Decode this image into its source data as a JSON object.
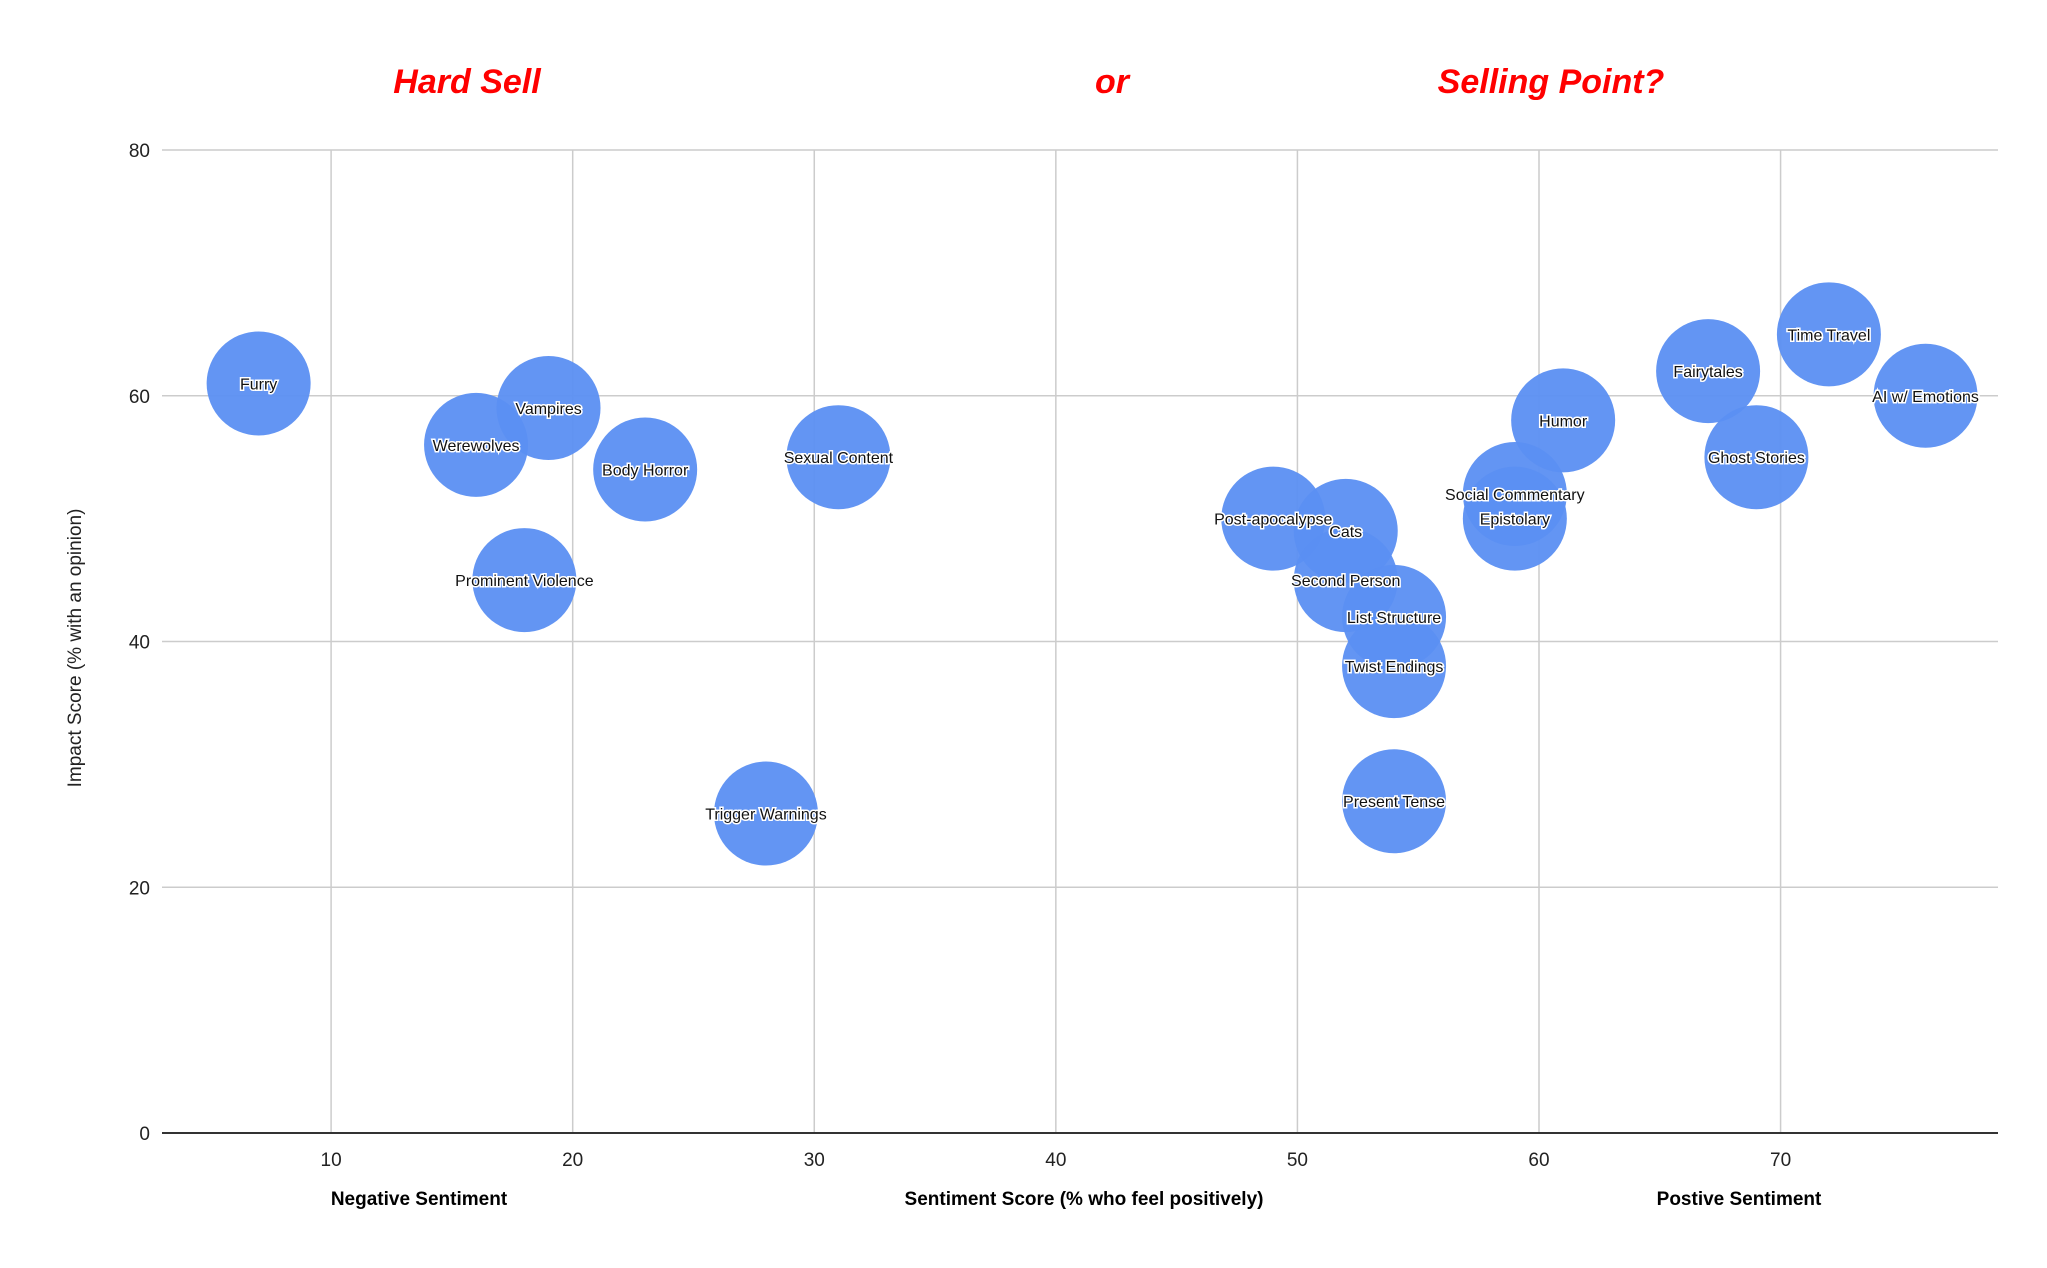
{
  "headlines": {
    "left": "Hard Sell",
    "middle": "or",
    "right": "Selling Point?"
  },
  "colors": {
    "bubble": "#5b8ff2",
    "headline": "#ff0000",
    "grid": "#cccccc",
    "axis": "#333333"
  },
  "chart_data": {
    "type": "scatter",
    "variant": "bubble",
    "xlabel": "Sentiment Score (% who feel positively)",
    "xlabel_left": "Negative Sentiment",
    "xlabel_right": "Postive Sentiment",
    "ylabel": "Impact Score (% with an opinion)",
    "xlim": [
      3,
      79
    ],
    "ylim": [
      0,
      80
    ],
    "x_ticks": [
      10,
      20,
      30,
      40,
      50,
      60,
      70
    ],
    "y_ticks": [
      0,
      20,
      40,
      60,
      80
    ],
    "grid": true,
    "legend": "none",
    "points": [
      {
        "label": "Furry",
        "x": 7,
        "y": 61
      },
      {
        "label": "Werewolves",
        "x": 16,
        "y": 56
      },
      {
        "label": "Vampires",
        "x": 19,
        "y": 59
      },
      {
        "label": "Body Horror",
        "x": 23,
        "y": 54
      },
      {
        "label": "Prominent Violence",
        "x": 18,
        "y": 45
      },
      {
        "label": "Sexual Content",
        "x": 31,
        "y": 55
      },
      {
        "label": "Trigger Warnings",
        "x": 28,
        "y": 26
      },
      {
        "label": "Post-apocalypse",
        "x": 49,
        "y": 50
      },
      {
        "label": "Cats",
        "x": 52,
        "y": 49
      },
      {
        "label": "Second Person",
        "x": 52,
        "y": 45
      },
      {
        "label": "List Structure",
        "x": 54,
        "y": 42
      },
      {
        "label": "Twist Endings",
        "x": 54,
        "y": 38
      },
      {
        "label": "Present Tense",
        "x": 54,
        "y": 27
      },
      {
        "label": "Social Commentary",
        "x": 59,
        "y": 52
      },
      {
        "label": "Epistolary",
        "x": 59,
        "y": 50
      },
      {
        "label": "Humor",
        "x": 61,
        "y": 58
      },
      {
        "label": "Fairytales",
        "x": 67,
        "y": 62
      },
      {
        "label": "Ghost Stories",
        "x": 69,
        "y": 55
      },
      {
        "label": "Time Travel",
        "x": 72,
        "y": 65
      },
      {
        "label": "AI w/ Emotions",
        "x": 76,
        "y": 60
      }
    ]
  }
}
